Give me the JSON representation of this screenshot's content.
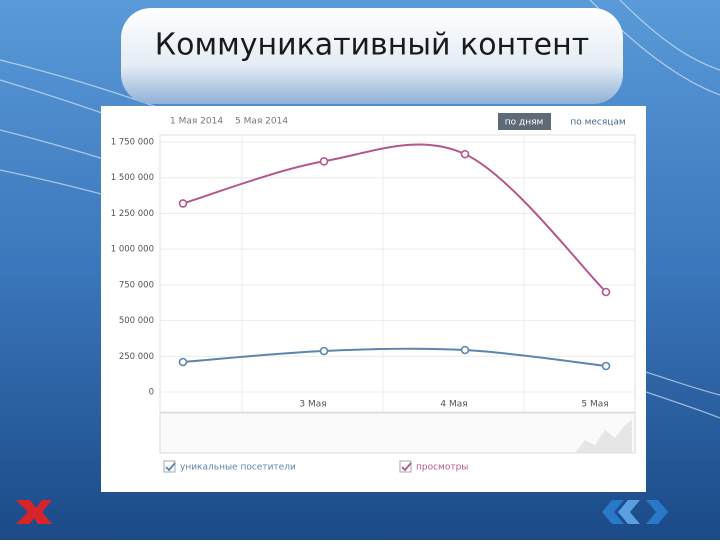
{
  "slide_title": "Коммуникативный контент",
  "chart_data": {
    "type": "line",
    "date_from": "1 Мая 2014",
    "date_to": "5 Мая 2014",
    "buttons": [
      "по дням",
      "по месяцам"
    ],
    "categories": [
      null,
      "3 Мая",
      "4 Мая",
      "5 Мая"
    ],
    "series": [
      {
        "name": "уникальные посетители",
        "color": "#5b86ad",
        "values": [
          210000,
          287000,
          294000,
          182000
        ]
      },
      {
        "name": "просмотры",
        "color": "#b5578f",
        "values": [
          1320000,
          1615000,
          1665000,
          700000
        ]
      }
    ],
    "ylim": [
      0,
      1750000
    ],
    "yticks": [
      0,
      {
        "value": 250000,
        "label": "250 000"
      },
      {
        "value": 500000,
        "label": "500 000"
      },
      {
        "value": 750000,
        "label": "750 000"
      },
      {
        "value": 1000000,
        "label": "1 000 000"
      },
      {
        "value": 1250000,
        "label": "1 250 000"
      },
      {
        "value": 1500000,
        "label": "1 500 000"
      },
      {
        "value": 1750000,
        "label": "1 750 000"
      }
    ],
    "grid": true
  }
}
